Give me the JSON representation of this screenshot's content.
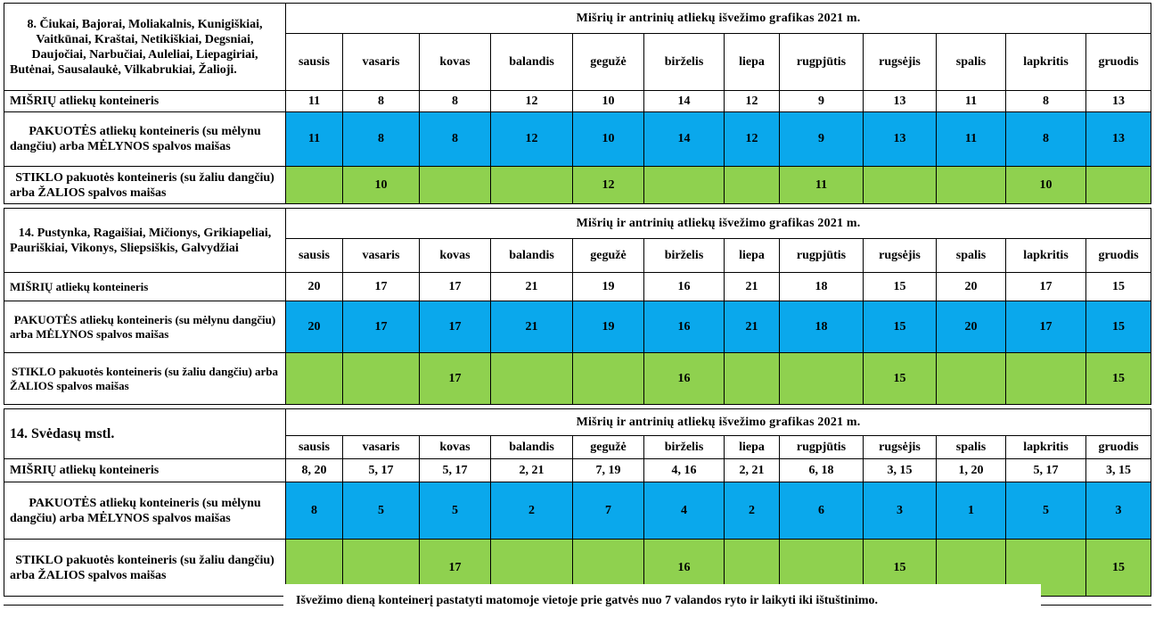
{
  "months": [
    "sausis",
    "vasaris",
    "kovas",
    "balandis",
    "gegužė",
    "birželis",
    "liepa",
    "rugpjūtis",
    "rugsėjis",
    "spalis",
    "lapkritis",
    "gruodis"
  ],
  "sections": [
    {
      "area": "8. Čiukai, Bajorai, Moliakalnis, Kunigiškiai, Vaitkūnai, Kraštai, Netikiškiai, Degsniai, Daujočiai, Narbučiai, Auleliai, Liepagiriai, Butėnai, Sausalaukė, Vilkabrukiai, Žalioji.",
      "title": "Mišrių ir antrinių atliekų išvežimo grafikas 2021 m.",
      "mixed_label": "MIŠRIŲ atliekų konteineris",
      "mixed": [
        "11",
        "8",
        "8",
        "12",
        "10",
        "14",
        "12",
        "9",
        "13",
        "11",
        "8",
        "13"
      ],
      "pack_label": "PAKUOTĖS atliekų konteineris (su mėlynu dangčiu) arba MĖLYNOS spalvos maišas",
      "pack": [
        "11",
        "8",
        "8",
        "12",
        "10",
        "14",
        "12",
        "9",
        "13",
        "11",
        "8",
        "13"
      ],
      "glass_label": "STIKLO pakuotės konteineris (su žaliu dangčiu) arba ŽALIOS spalvos maišas",
      "glass": [
        "",
        "10",
        "",
        "",
        "12",
        "",
        "",
        "11",
        "",
        "",
        "10",
        ""
      ]
    },
    {
      "area": "14. Pustynka, Ragaišiai, Mičionys, Grikiapeliai, Pauriškiai, Vikonys, Sliepsiškis, Galvydžiai",
      "title": "Mišrių ir antrinių atliekų išvežimo grafikas 2021 m.",
      "mixed_label": "MIŠRIŲ atliekų konteineris",
      "mixed": [
        "20",
        "17",
        "17",
        "21",
        "19",
        "16",
        "21",
        "18",
        "15",
        "20",
        "17",
        "15"
      ],
      "pack_label": "PAKUOTĖS atliekų konteineris (su mėlynu dangčiu) arba MĖLYNOS spalvos maišas",
      "pack": [
        "20",
        "17",
        "17",
        "21",
        "19",
        "16",
        "21",
        "18",
        "15",
        "20",
        "17",
        "15"
      ],
      "glass_label": "STIKLO pakuotės konteineris (su žaliu dangčiu) arba ŽALIOS spalvos maišas",
      "glass": [
        "",
        "",
        "17",
        "",
        "",
        "16",
        "",
        "",
        "15",
        "",
        "",
        "15"
      ]
    },
    {
      "area": "14. Svėdasų mstl.",
      "title": "Mišrių ir antrinių atliekų išvežimo grafikas 2021 m.",
      "mixed_label": "MIŠRIŲ atliekų konteineris",
      "mixed": [
        "8, 20",
        "5, 17",
        "5, 17",
        "2, 21",
        "7, 19",
        "4, 16",
        "2, 21",
        "6, 18",
        "3, 15",
        "1, 20",
        "5, 17",
        "3, 15"
      ],
      "pack_label": "PAKUOTĖS atliekų konteineris (su mėlynu dangčiu) arba MĖLYNOS spalvos maišas",
      "pack": [
        "8",
        "5",
        "5",
        "2",
        "7",
        "4",
        "2",
        "6",
        "3",
        "1",
        "5",
        "3"
      ],
      "glass_label": "STIKLO pakuotės konteineris (su žaliu dangčiu) arba ŽALIOS spalvos maišas",
      "glass": [
        "",
        "",
        "17",
        "",
        "",
        "16",
        "",
        "",
        "15",
        "",
        "",
        "15"
      ]
    }
  ],
  "note": "Išvežimo dieną konteinerį pastatyti matomoje vietoje prie gatvės nuo 7 valandos ryto ir laikyti iki ištuštinimo.",
  "colors": {
    "blue": "#0aa8ec",
    "green": "#8fd14f"
  }
}
